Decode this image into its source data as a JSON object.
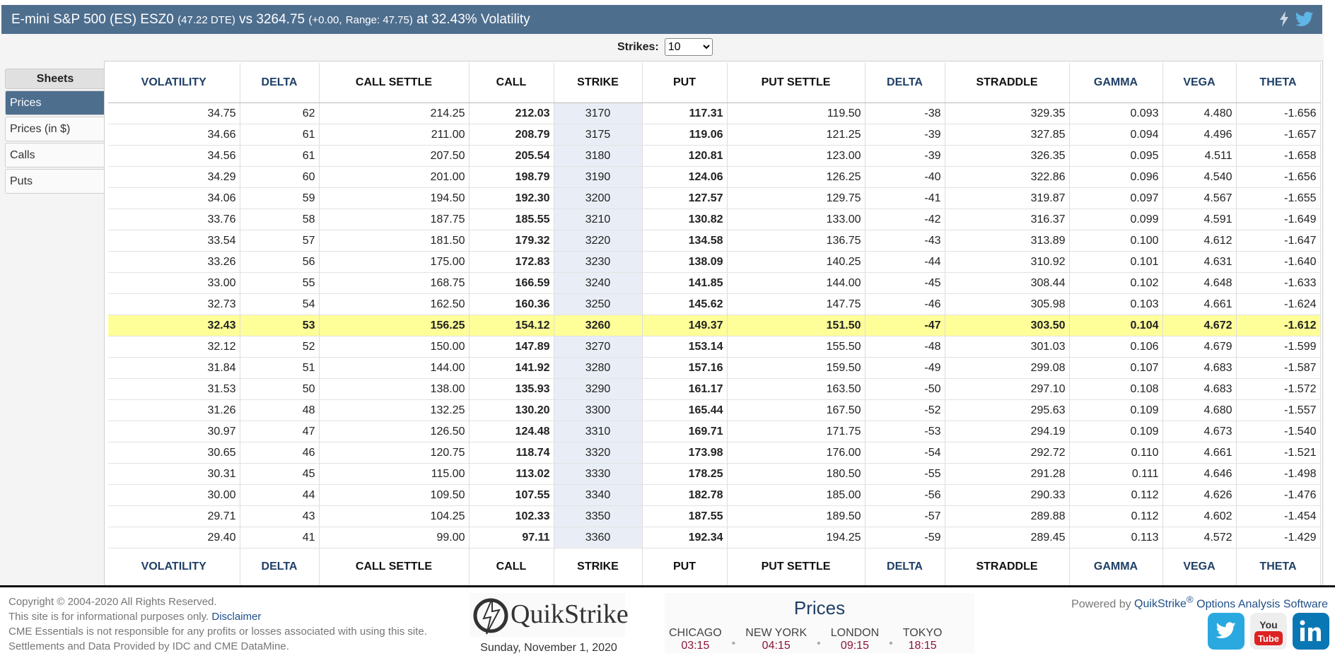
{
  "header": {
    "title_main": "E-mini S&P 500 (ES) ESZ0",
    "title_dte": "(47.22 DTE)",
    "title_vs": "vs 3264.75",
    "title_change": "(+0.00,",
    "title_range": "Range: 47.75)",
    "title_tail": "at 32.43% Volatility"
  },
  "strikes": {
    "label": "Strikes:",
    "value": "10"
  },
  "sidebar": {
    "heading": "Sheets",
    "items": [
      {
        "label": "Prices",
        "active": true
      },
      {
        "label": "Prices (in $)",
        "active": false
      },
      {
        "label": "Calls",
        "active": false
      },
      {
        "label": "Puts",
        "active": false
      }
    ]
  },
  "table": {
    "columns": [
      "VOLATILITY",
      "DELTA",
      "CALL SETTLE",
      "CALL",
      "STRIKE",
      "PUT",
      "PUT SETTLE",
      "DELTA",
      "STRADDLE",
      "GAMMA",
      "VEGA",
      "THETA"
    ],
    "rows": [
      [
        "34.75",
        "62",
        "214.25",
        "212.03",
        "3170",
        "117.31",
        "119.50",
        "-38",
        "329.35",
        "0.093",
        "4.480",
        "-1.656"
      ],
      [
        "34.66",
        "61",
        "211.00",
        "208.79",
        "3175",
        "119.06",
        "121.25",
        "-39",
        "327.85",
        "0.094",
        "4.496",
        "-1.657"
      ],
      [
        "34.56",
        "61",
        "207.50",
        "205.54",
        "3180",
        "120.81",
        "123.00",
        "-39",
        "326.35",
        "0.095",
        "4.511",
        "-1.658"
      ],
      [
        "34.29",
        "60",
        "201.00",
        "198.79",
        "3190",
        "124.06",
        "126.25",
        "-40",
        "322.86",
        "0.096",
        "4.540",
        "-1.656"
      ],
      [
        "34.06",
        "59",
        "194.50",
        "192.30",
        "3200",
        "127.57",
        "129.75",
        "-41",
        "319.87",
        "0.097",
        "4.567",
        "-1.655"
      ],
      [
        "33.76",
        "58",
        "187.75",
        "185.55",
        "3210",
        "130.82",
        "133.00",
        "-42",
        "316.37",
        "0.099",
        "4.591",
        "-1.649"
      ],
      [
        "33.54",
        "57",
        "181.50",
        "179.32",
        "3220",
        "134.58",
        "136.75",
        "-43",
        "313.89",
        "0.100",
        "4.612",
        "-1.647"
      ],
      [
        "33.26",
        "56",
        "175.00",
        "172.83",
        "3230",
        "138.09",
        "140.25",
        "-44",
        "310.92",
        "0.101",
        "4.631",
        "-1.640"
      ],
      [
        "33.00",
        "55",
        "168.75",
        "166.59",
        "3240",
        "141.85",
        "144.00",
        "-45",
        "308.44",
        "0.102",
        "4.648",
        "-1.633"
      ],
      [
        "32.73",
        "54",
        "162.50",
        "160.36",
        "3250",
        "145.62",
        "147.75",
        "-46",
        "305.98",
        "0.103",
        "4.661",
        "-1.624"
      ],
      [
        "32.43",
        "53",
        "156.25",
        "154.12",
        "3260",
        "149.37",
        "151.50",
        "-47",
        "303.50",
        "0.104",
        "4.672",
        "-1.612"
      ],
      [
        "32.12",
        "52",
        "150.00",
        "147.89",
        "3270",
        "153.14",
        "155.50",
        "-48",
        "301.03",
        "0.106",
        "4.679",
        "-1.599"
      ],
      [
        "31.84",
        "51",
        "144.00",
        "141.92",
        "3280",
        "157.16",
        "159.50",
        "-49",
        "299.08",
        "0.107",
        "4.683",
        "-1.587"
      ],
      [
        "31.53",
        "50",
        "138.00",
        "135.93",
        "3290",
        "161.17",
        "163.50",
        "-50",
        "297.10",
        "0.108",
        "4.683",
        "-1.572"
      ],
      [
        "31.26",
        "48",
        "132.25",
        "130.20",
        "3300",
        "165.44",
        "167.50",
        "-52",
        "295.63",
        "0.109",
        "4.680",
        "-1.557"
      ],
      [
        "30.97",
        "47",
        "126.50",
        "124.48",
        "3310",
        "169.71",
        "171.75",
        "-53",
        "294.19",
        "0.109",
        "4.673",
        "-1.540"
      ],
      [
        "30.65",
        "46",
        "120.75",
        "118.74",
        "3320",
        "173.98",
        "176.00",
        "-54",
        "292.72",
        "0.110",
        "4.661",
        "-1.521"
      ],
      [
        "30.31",
        "45",
        "115.00",
        "113.02",
        "3330",
        "178.25",
        "180.50",
        "-55",
        "291.28",
        "0.111",
        "4.646",
        "-1.498"
      ],
      [
        "30.00",
        "44",
        "109.50",
        "107.55",
        "3340",
        "182.78",
        "185.00",
        "-56",
        "290.33",
        "0.112",
        "4.626",
        "-1.476"
      ],
      [
        "29.71",
        "43",
        "104.25",
        "102.33",
        "3350",
        "187.55",
        "189.50",
        "-57",
        "289.88",
        "0.112",
        "4.602",
        "-1.454"
      ],
      [
        "29.40",
        "41",
        "99.00",
        "97.11",
        "3360",
        "192.34",
        "194.25",
        "-59",
        "289.45",
        "0.113",
        "4.572",
        "-1.429"
      ]
    ],
    "atm_row": 10
  },
  "footer": {
    "copyright": "Copyright © 2004-2020 All Rights Reserved.",
    "info": "This site is for informational purposes only.",
    "disclaimer": "Disclaimer",
    "notresp": "CME Essentials is not responsible for any profits or losses associated with using this site.",
    "settlements": "Settlements and Data Provided by IDC and CME DataMine.",
    "logo_text": "QuikStrike",
    "date": "Sunday, November 1, 2020",
    "clock_title": "Prices",
    "cities": [
      {
        "name": "CHICAGO",
        "time": "03:15"
      },
      {
        "name": "NEW YORK",
        "time": "04:15"
      },
      {
        "name": "LONDON",
        "time": "09:15"
      },
      {
        "name": "TOKYO",
        "time": "18:15"
      }
    ],
    "powered_prefix": "Powered by",
    "powered_link": "QuikStrike",
    "powered_suffix": "Options Analysis Software"
  },
  "colors": {
    "header_bg": "#4e6e8e",
    "atm_row": "#ffff99",
    "strike_col": "#e9eef6",
    "time": "#8b1538"
  },
  "icons": [
    "lightning-icon",
    "twitter-icon",
    "twitter-social-icon",
    "youtube-icon",
    "linkedin-icon"
  ]
}
